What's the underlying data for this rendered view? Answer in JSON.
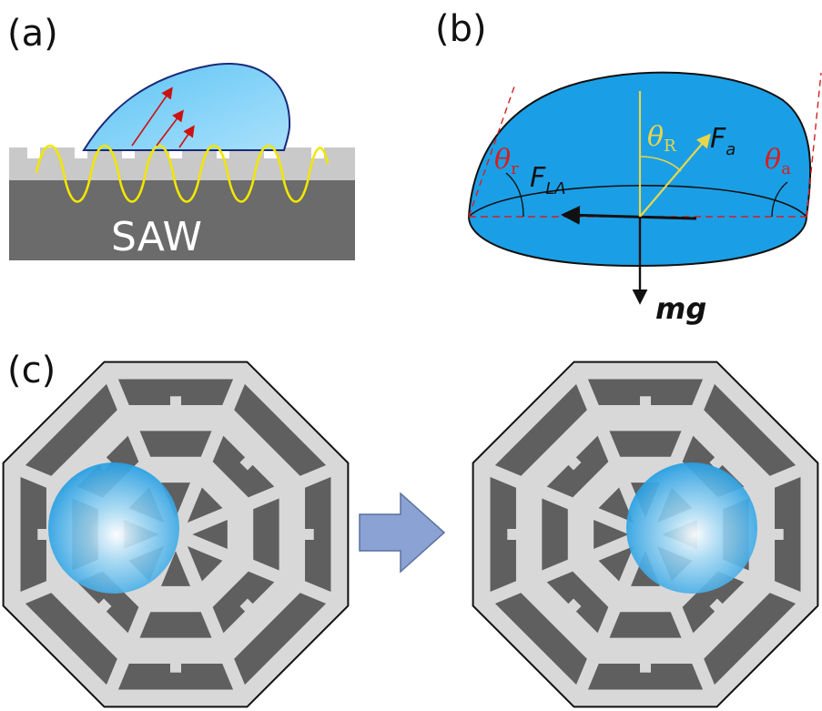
{
  "panels": {
    "a": {
      "label": "(a)",
      "substrate_label": "SAW"
    },
    "b": {
      "label": "(b)",
      "theta_r": {
        "symbol": "θ",
        "sub": "r"
      },
      "theta_R": {
        "symbol": "θ",
        "sub": "R"
      },
      "theta_a": {
        "symbol": "θ",
        "sub": "a"
      },
      "F_LA": {
        "symbol": "F",
        "sub": "LA"
      },
      "F_a": {
        "symbol": "F",
        "sub": "a"
      },
      "mg": "mg"
    },
    "c": {
      "label": "(c)"
    }
  },
  "colors": {
    "droplet": "#1a9fe6",
    "substrate_dark": "#6b6b6b",
    "substrate_light": "#c9c9c9",
    "wave": "#f2e600",
    "arrow_red": "#cc1111",
    "pattern_bars": "#d8d8d8",
    "pattern_bg": "#5f5f5f",
    "transition_arrow": "#8aa2d4"
  }
}
